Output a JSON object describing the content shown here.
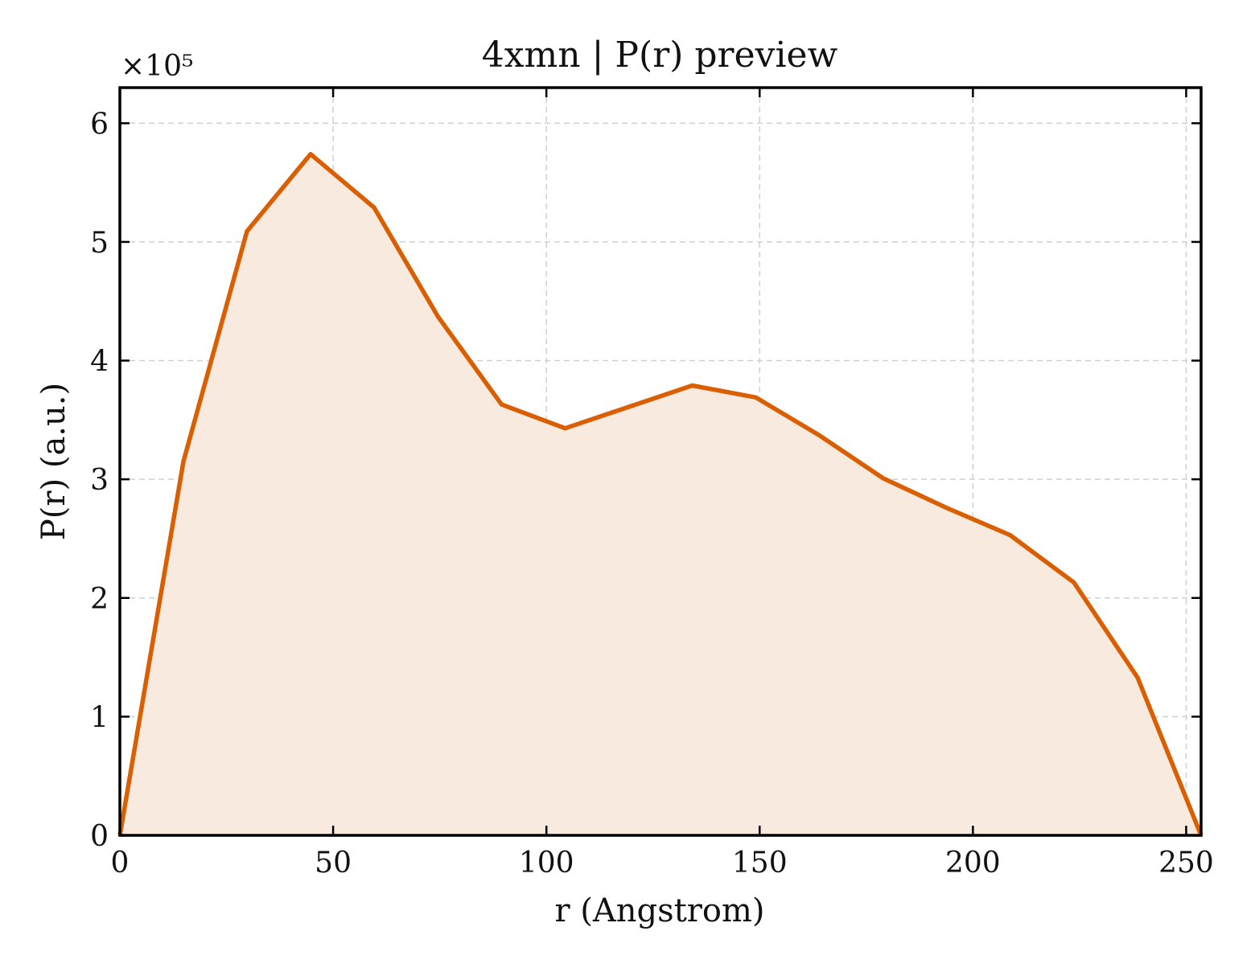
{
  "chart_data": {
    "type": "area",
    "title": "4xmn | P(r) preview",
    "xlabel": "r (Angstrom)",
    "ylabel": "P(r) (a.u.)",
    "y_multiplier": "×10⁵",
    "xlim": [
      0,
      253.5
    ],
    "ylim": [
      0,
      6.3
    ],
    "xticks": [
      0,
      50,
      100,
      150,
      200,
      250
    ],
    "yticks": [
      0,
      1,
      2,
      3,
      4,
      5,
      6
    ],
    "grid": true,
    "legend": "none",
    "line_color": "#d95f02",
    "fill_color": "#f8eadf",
    "series": [
      {
        "x": [
          0,
          14.9,
          29.8,
          44.7,
          59.6,
          74.6,
          89.5,
          104.4,
          119.3,
          134.2,
          149.1,
          164.0,
          178.9,
          193.8,
          208.7,
          223.7,
          238.6,
          253.5
        ],
        "values": [
          0,
          3.15,
          5.09,
          5.74,
          5.29,
          4.37,
          3.63,
          3.43,
          3.61,
          3.79,
          3.69,
          3.37,
          3.01,
          2.76,
          2.53,
          2.13,
          1.33,
          0
        ]
      }
    ]
  }
}
